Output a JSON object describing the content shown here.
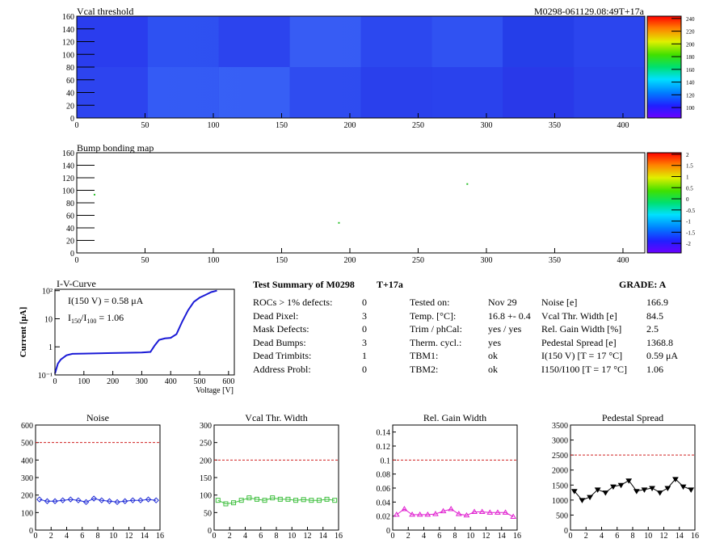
{
  "vcal_map": {
    "title": "Vcal threshold",
    "module_label": "M0298-061129.08:49T+17a",
    "xlim": [
      0,
      416
    ],
    "ylim": [
      0,
      160
    ],
    "xticks": [
      0,
      50,
      100,
      150,
      200,
      250,
      300,
      350,
      400
    ],
    "yticks": [
      0,
      20,
      40,
      60,
      80,
      100,
      120,
      140,
      160
    ],
    "scale_ticks": [
      "100",
      "120",
      "140",
      "160",
      "180",
      "200",
      "220",
      "240"
    ]
  },
  "bump_map": {
    "title": "Bump bonding map",
    "xlim": [
      0,
      416
    ],
    "ylim": [
      0,
      160
    ],
    "xticks": [
      0,
      50,
      100,
      150,
      200,
      250,
      300,
      350,
      400
    ],
    "yticks": [
      0,
      20,
      40,
      60,
      80,
      100,
      120,
      140,
      160
    ],
    "scale_ticks": [
      "-2",
      "-1.5",
      "-1",
      "-0.5",
      "0",
      "0.5",
      "1",
      "1.5",
      "2"
    ],
    "points": [
      [
        13,
        93
      ],
      [
        192,
        48
      ],
      [
        286,
        110
      ]
    ]
  },
  "iv_curve": {
    "title": "I-V-Curve",
    "ylabel": "Current [μA]",
    "xlabel": "Voltage [V]",
    "annotation1": "I(150 V) = 0.58 μA",
    "annotation2_a": "I",
    "annotation2_sub1": "150",
    "annotation2_b": "/I",
    "annotation2_sub2": "100",
    "annotation2_c": " =  1.06",
    "xticks": [
      "0",
      "100",
      "200",
      "300",
      "400",
      "500",
      "600"
    ],
    "yticks": [
      "10⁻¹",
      "1",
      "10",
      "10²"
    ]
  },
  "summary": {
    "title": "Test Summary of M0298",
    "temp_tag": "T+17a",
    "grade": "GRADE:  A",
    "left": [
      {
        "label": "ROCs > 1% defects:",
        "value": "0"
      },
      {
        "label": "Dead Pixel:",
        "value": "3"
      },
      {
        "label": "Mask Defects:",
        "value": "0"
      },
      {
        "label": "Dead Bumps:",
        "value": "3"
      },
      {
        "label": "Dead Trimbits:",
        "value": "1"
      },
      {
        "label": "Address Probl:",
        "value": "0"
      }
    ],
    "middle": [
      {
        "label": "Tested on:",
        "value": "Nov 29"
      },
      {
        "label": "Temp. [°C]:",
        "value": "16.8 +- 0.4"
      },
      {
        "label": "Trim / phCal:",
        "value": "yes / yes"
      },
      {
        "label": "Therm. cycl.:",
        "value": "yes"
      },
      {
        "label": "TBM1:",
        "value": "ok"
      },
      {
        "label": "TBM2:",
        "value": "ok"
      }
    ],
    "right": [
      {
        "label": "Noise [e]",
        "value": "166.9"
      },
      {
        "label": "Vcal Thr. Width [e]",
        "value": "84.5"
      },
      {
        "label": "Rel. Gain Width [%]",
        "value": "2.5"
      },
      {
        "label": "Pedestal Spread [e]",
        "value": "1368.8"
      },
      {
        "label": "I(150 V) [T = 17 °C]",
        "value": "0.59 μA"
      },
      {
        "label": "I150/I100  [T = 17 °C]",
        "value": "1.06"
      }
    ]
  },
  "chart_data": [
    {
      "type": "line",
      "title": "Noise",
      "x": [
        0,
        1,
        2,
        3,
        4,
        5,
        6,
        7,
        8,
        9,
        10,
        11,
        12,
        13,
        14,
        15
      ],
      "values": [
        175,
        165,
        165,
        170,
        175,
        170,
        160,
        180,
        170,
        165,
        160,
        165,
        170,
        170,
        175,
        170
      ],
      "ylim": [
        0,
        600
      ],
      "yticks": [
        0,
        100,
        200,
        300,
        400,
        500,
        600
      ],
      "xlim": [
        0,
        16
      ],
      "xticks": [
        0,
        2,
        4,
        6,
        8,
        10,
        12,
        14,
        16
      ],
      "cut": 500,
      "color": "#1f2bd6",
      "marker": "diamond"
    },
    {
      "type": "line",
      "title": "Vcal Thr. Width",
      "x": [
        0,
        1,
        2,
        3,
        4,
        5,
        6,
        7,
        8,
        9,
        10,
        11,
        12,
        13,
        14,
        15
      ],
      "values": [
        85,
        75,
        78,
        85,
        92,
        88,
        85,
        92,
        88,
        88,
        85,
        87,
        85,
        85,
        88,
        85
      ],
      "ylim": [
        0,
        300
      ],
      "yticks": [
        0,
        50,
        100,
        150,
        200,
        250,
        300
      ],
      "xlim": [
        0,
        16
      ],
      "xticks": [
        0,
        2,
        4,
        6,
        8,
        10,
        12,
        14,
        16
      ],
      "cut": 200,
      "color": "#3fbf3f",
      "marker": "square"
    },
    {
      "type": "line",
      "title": "Rel. Gain Width",
      "x": [
        0,
        1,
        2,
        3,
        4,
        5,
        6,
        7,
        8,
        9,
        10,
        11,
        12,
        13,
        14,
        15
      ],
      "values": [
        0.022,
        0.03,
        0.022,
        0.022,
        0.022,
        0.023,
        0.027,
        0.03,
        0.023,
        0.021,
        0.026,
        0.026,
        0.025,
        0.025,
        0.025,
        0.019
      ],
      "ylim": [
        0,
        0.15
      ],
      "yticks": [
        0,
        0.02,
        0.04,
        0.06,
        0.08,
        0.1,
        0.12,
        0.14
      ],
      "xlim": [
        0,
        16
      ],
      "xticks": [
        0,
        2,
        4,
        6,
        8,
        10,
        12,
        14,
        16
      ],
      "cut": 0.1,
      "color": "#e020d0",
      "marker": "triangle"
    },
    {
      "type": "line",
      "title": "Pedestal Spread",
      "x": [
        0,
        1,
        2,
        3,
        4,
        5,
        6,
        7,
        8,
        9,
        10,
        11,
        12,
        13,
        14,
        15
      ],
      "values": [
        1300,
        1000,
        1100,
        1350,
        1250,
        1450,
        1500,
        1650,
        1300,
        1350,
        1400,
        1250,
        1400,
        1700,
        1450,
        1350
      ],
      "ylim": [
        0,
        3500
      ],
      "yticks": [
        0,
        500,
        1000,
        1500,
        2000,
        2500,
        3000,
        3500
      ],
      "xlim": [
        0,
        16
      ],
      "xticks": [
        0,
        2,
        4,
        6,
        8,
        10,
        12,
        14,
        16
      ],
      "cut": 2500,
      "color": "#000000",
      "marker": "triangle-down"
    }
  ]
}
